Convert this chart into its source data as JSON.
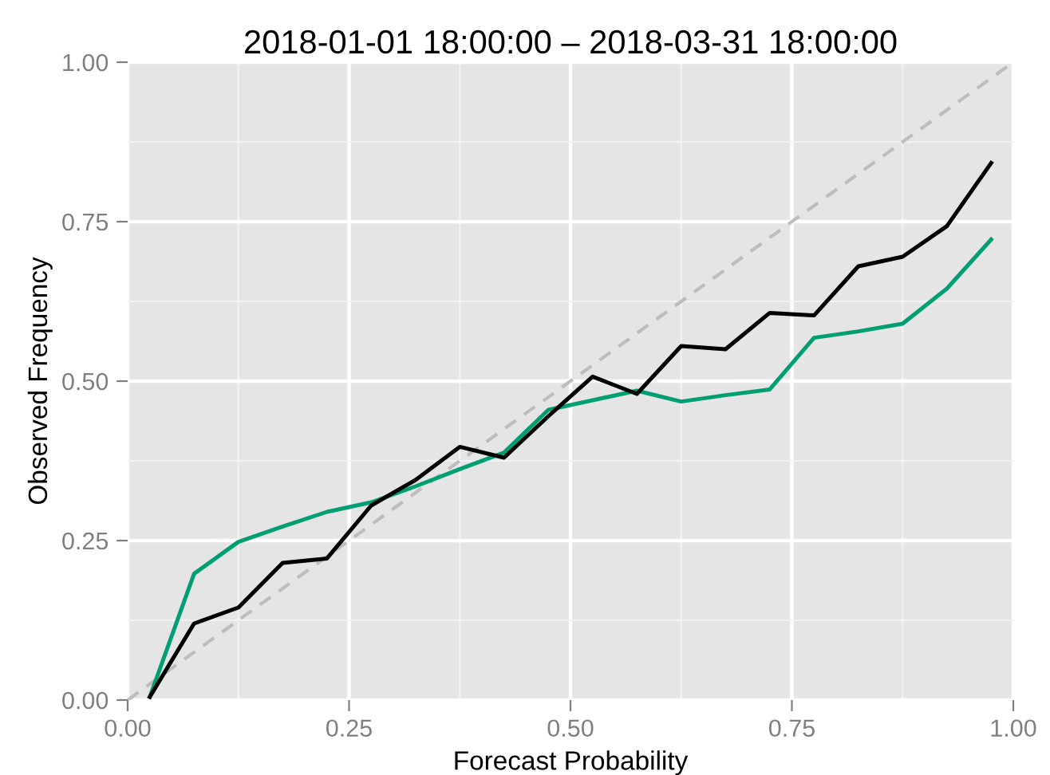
{
  "chart_data": {
    "type": "line",
    "title": "2018-01-01 18:00:00 – 2018-03-31 18:00:00",
    "xlabel": "Forecast Probability",
    "ylabel": "Observed Frequency",
    "x": [
      0.025,
      0.075,
      0.125,
      0.175,
      0.225,
      0.275,
      0.325,
      0.375,
      0.425,
      0.475,
      0.525,
      0.575,
      0.625,
      0.675,
      0.725,
      0.775,
      0.825,
      0.875,
      0.925,
      0.975
    ],
    "series": [
      {
        "color": "#bdbdbd",
        "line_style": "dashed",
        "x": [
          0,
          1
        ],
        "values": [
          0,
          1
        ]
      },
      {
        "color": "#009e73",
        "values": [
          0.005,
          0.198,
          0.248,
          0.272,
          0.295,
          0.31,
          0.335,
          0.362,
          0.388,
          0.455,
          0.47,
          0.485,
          0.468,
          0.478,
          0.487,
          0.568,
          0.578,
          0.59,
          0.645,
          0.722
        ]
      },
      {
        "color": "#000000",
        "values": [
          0.005,
          0.12,
          0.145,
          0.215,
          0.222,
          0.305,
          0.345,
          0.397,
          0.38,
          0.445,
          0.507,
          0.48,
          0.555,
          0.55,
          0.607,
          0.603,
          0.68,
          0.695,
          0.743,
          0.842
        ]
      }
    ],
    "xlim": [
      0,
      1
    ],
    "ylim": [
      0,
      1
    ],
    "xticks": [
      {
        "value": 0,
        "label": "0.00"
      },
      {
        "value": 0.25,
        "label": "0.25"
      },
      {
        "value": 0.5,
        "label": "0.50"
      },
      {
        "value": 0.75,
        "label": "0.75"
      },
      {
        "value": 1,
        "label": "1.00"
      }
    ],
    "yticks": [
      {
        "value": 0,
        "label": "0.00"
      },
      {
        "value": 0.25,
        "label": "0.25"
      },
      {
        "value": 0.5,
        "label": "0.50"
      },
      {
        "value": 0.75,
        "label": "0.75"
      },
      {
        "value": 1,
        "label": "1.00"
      }
    ],
    "grid": true
  }
}
